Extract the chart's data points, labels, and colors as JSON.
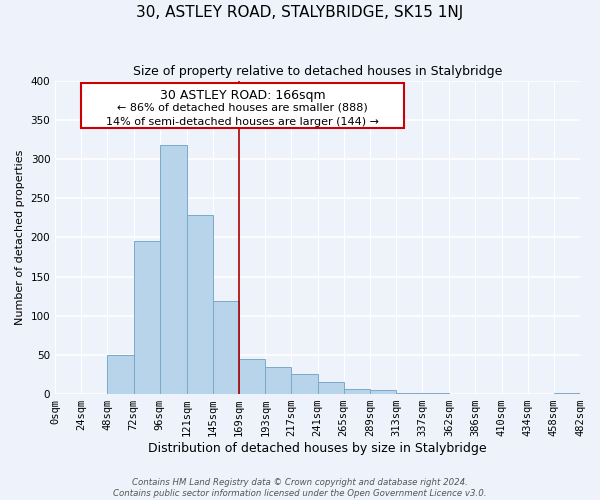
{
  "title": "30, ASTLEY ROAD, STALYBRIDGE, SK15 1NJ",
  "subtitle": "Size of property relative to detached houses in Stalybridge",
  "xlabel": "Distribution of detached houses by size in Stalybridge",
  "ylabel": "Number of detached properties",
  "bar_color": "#b8d4ea",
  "bar_edge_color": "#7aaac8",
  "background_color": "#eef2fb",
  "grid_color": "#ffffff",
  "bin_edges": [
    0,
    24,
    48,
    72,
    96,
    121,
    145,
    169,
    193,
    217,
    241,
    265,
    289,
    313,
    337,
    362,
    386,
    410,
    434,
    458,
    482
  ],
  "bin_labels": [
    "0sqm",
    "24sqm",
    "48sqm",
    "72sqm",
    "96sqm",
    "121sqm",
    "145sqm",
    "169sqm",
    "193sqm",
    "217sqm",
    "241sqm",
    "265sqm",
    "289sqm",
    "313sqm",
    "337sqm",
    "362sqm",
    "386sqm",
    "410sqm",
    "434sqm",
    "458sqm",
    "482sqm"
  ],
  "counts": [
    0,
    0,
    50,
    195,
    318,
    228,
    119,
    45,
    35,
    25,
    15,
    7,
    5,
    1,
    1,
    0,
    0,
    0,
    0,
    2
  ],
  "property_line_x": 169,
  "property_label": "30 ASTLEY ROAD: 166sqm",
  "annotation_line1": "← 86% of detached houses are smaller (888)",
  "annotation_line2": "14% of semi-detached houses are larger (144) →",
  "box_edge_color": "#cc0000",
  "line_color": "#aa0000",
  "ylim": [
    0,
    400
  ],
  "yticks": [
    0,
    50,
    100,
    150,
    200,
    250,
    300,
    350,
    400
  ],
  "title_fontsize": 11,
  "subtitle_fontsize": 9,
  "ylabel_fontsize": 8,
  "xlabel_fontsize": 9,
  "tick_fontsize": 7.5,
  "footer1": "Contains HM Land Registry data © Crown copyright and database right 2024.",
  "footer2": "Contains public sector information licensed under the Open Government Licence v3.0."
}
